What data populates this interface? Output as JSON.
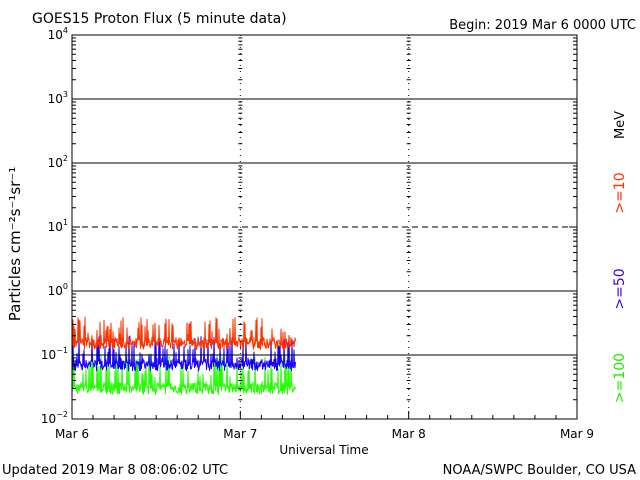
{
  "header": {
    "title": "GOES15 Proton Flux (5 minute data)",
    "begin": "Begin: 2019 Mar 6 0000 UTC"
  },
  "footer": {
    "updated": "Updated 2019 Mar  8 08:06:02 UTC",
    "credit": "NOAA/SWPC Boulder, CO USA"
  },
  "chart_data": {
    "type": "line",
    "title": "GOES15 Proton Flux (5 minute data)",
    "xlabel": "Universal Time",
    "ylabel": "Particles cm⁻²s⁻¹sr⁻¹",
    "y_scale": "log",
    "ylim": [
      0.01,
      10000
    ],
    "y_exponents": [
      -2,
      -1,
      0,
      1,
      2,
      3,
      4
    ],
    "xlim_days": [
      0,
      3
    ],
    "x_ticks": [
      {
        "day": 0,
        "label": "Mar 6"
      },
      {
        "day": 1,
        "label": "Mar 7"
      },
      {
        "day": 2,
        "label": "Mar 8"
      },
      {
        "day": 3,
        "label": "Mar 9"
      }
    ],
    "data_end_day": 1.33,
    "reference_lines": [
      {
        "value": 10,
        "style": "dashed"
      }
    ],
    "legend": [
      {
        "label": ">=10",
        "unit": "MeV",
        "color": "#ff3300"
      },
      {
        "label": ">=50",
        "color": "#4400cc"
      },
      {
        "label": ">=100",
        "color": "#22ee00"
      }
    ],
    "series": [
      {
        "name": ">=10 MeV",
        "color": "#ff3300",
        "baseline": 0.15,
        "peak_min": 0.2,
        "peak_max": 0.4
      },
      {
        "name": ">=50 MeV",
        "color": "#1a00ff",
        "baseline": 0.07,
        "peak_min": 0.1,
        "peak_max": 0.2
      },
      {
        "name": ">=100 MeV",
        "color": "#22ff00",
        "baseline": 0.03,
        "peak_min": 0.045,
        "peak_max": 0.1
      }
    ]
  }
}
